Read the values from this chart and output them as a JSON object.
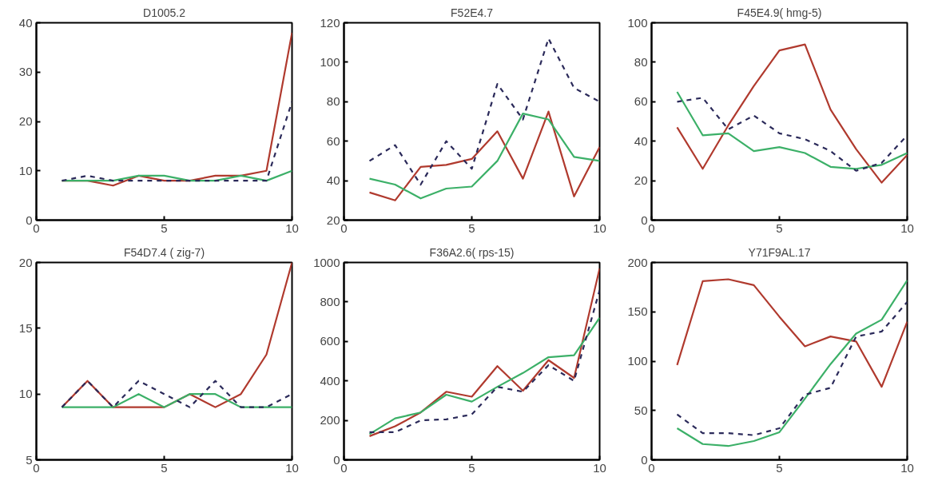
{
  "chart_data": [
    {
      "type": "line",
      "title": "D1005.2",
      "x": [
        1,
        2,
        3,
        4,
        5,
        6,
        7,
        8,
        9,
        10
      ],
      "xlim": [
        0,
        10
      ],
      "xticks": [
        0,
        5,
        10
      ],
      "ylim": [
        0,
        40
      ],
      "yticks": [
        0,
        10,
        20,
        30,
        40
      ],
      "series": [
        {
          "color": "#b03a2e",
          "line_style": "solid",
          "values": [
            8,
            8,
            7,
            9,
            8,
            8,
            9,
            9,
            10,
            38
          ]
        },
        {
          "color": "#3cb068",
          "line_style": "solid",
          "values": [
            8,
            8,
            8,
            9,
            9,
            8,
            8,
            9,
            8,
            10
          ]
        },
        {
          "color": "#2b2a5a",
          "line_style": "dashed",
          "values": [
            8,
            9,
            8,
            8,
            8,
            8,
            8,
            8,
            8,
            24
          ]
        }
      ]
    },
    {
      "type": "line",
      "title": "F52E4.7",
      "x": [
        1,
        2,
        3,
        4,
        5,
        6,
        7,
        8,
        9,
        10
      ],
      "xlim": [
        0,
        10
      ],
      "xticks": [
        0,
        5,
        10
      ],
      "ylim": [
        20,
        120
      ],
      "yticks": [
        20,
        40,
        60,
        80,
        100,
        120
      ],
      "series": [
        {
          "color": "#b03a2e",
          "line_style": "solid",
          "values": [
            34,
            30,
            47,
            48,
            51,
            65,
            41,
            75,
            32,
            57
          ]
        },
        {
          "color": "#3cb068",
          "line_style": "solid",
          "values": [
            41,
            38,
            31,
            36,
            37,
            50,
            74,
            71,
            52,
            50
          ]
        },
        {
          "color": "#2b2a5a",
          "line_style": "dashed",
          "values": [
            50,
            58,
            38,
            60,
            46,
            89,
            71,
            112,
            87,
            80
          ]
        }
      ]
    },
    {
      "type": "line",
      "title": "F45E4.9( hmg-5)",
      "x": [
        1,
        2,
        3,
        4,
        5,
        6,
        7,
        8,
        9,
        10
      ],
      "xlim": [
        0,
        10
      ],
      "xticks": [
        0,
        5,
        10
      ],
      "ylim": [
        0,
        100
      ],
      "yticks": [
        0,
        20,
        40,
        60,
        80,
        100
      ],
      "series": [
        {
          "color": "#b03a2e",
          "line_style": "solid",
          "values": [
            47,
            26,
            48,
            68,
            86,
            89,
            56,
            36,
            19,
            33
          ]
        },
        {
          "color": "#3cb068",
          "line_style": "solid",
          "values": [
            65,
            43,
            44,
            35,
            37,
            34,
            27,
            26,
            28,
            34
          ]
        },
        {
          "color": "#2b2a5a",
          "line_style": "dashed",
          "values": [
            60,
            62,
            46,
            53,
            44,
            41,
            35,
            25,
            29,
            43
          ]
        }
      ]
    },
    {
      "type": "line",
      "title": "F54D7.4 ( zig-7)",
      "x": [
        1,
        2,
        3,
        4,
        5,
        6,
        7,
        8,
        9,
        10
      ],
      "xlim": [
        0,
        10
      ],
      "xticks": [
        0,
        5,
        10
      ],
      "ylim": [
        5,
        20
      ],
      "yticks": [
        5,
        10,
        15,
        20
      ],
      "series": [
        {
          "color": "#b03a2e",
          "line_style": "solid",
          "values": [
            9,
            11,
            9,
            9,
            9,
            10,
            9,
            10,
            13,
            20
          ]
        },
        {
          "color": "#3cb068",
          "line_style": "solid",
          "values": [
            9,
            9,
            9,
            10,
            9,
            10,
            10,
            9,
            9,
            9
          ]
        },
        {
          "color": "#2b2a5a",
          "line_style": "dashed",
          "values": [
            9,
            11,
            9,
            11,
            10,
            9,
            11,
            9,
            9,
            10
          ]
        }
      ]
    },
    {
      "type": "line",
      "title": "F36A2.6( rps-15)",
      "x": [
        1,
        2,
        3,
        4,
        5,
        6,
        7,
        8,
        9,
        10
      ],
      "xlim": [
        0,
        10
      ],
      "xticks": [
        0,
        5,
        10
      ],
      "ylim": [
        0,
        1000
      ],
      "yticks": [
        0,
        200,
        400,
        600,
        800,
        1000
      ],
      "series": [
        {
          "color": "#b03a2e",
          "line_style": "solid",
          "values": [
            120,
            170,
            240,
            345,
            320,
            475,
            350,
            505,
            415,
            970
          ]
        },
        {
          "color": "#3cb068",
          "line_style": "solid",
          "values": [
            130,
            210,
            240,
            330,
            295,
            370,
            440,
            520,
            530,
            720
          ]
        },
        {
          "color": "#2b2a5a",
          "line_style": "dashed",
          "values": [
            140,
            140,
            200,
            205,
            230,
            370,
            345,
            480,
            400,
            860
          ]
        }
      ]
    },
    {
      "type": "line",
      "title": "Y71F9AL.17",
      "x": [
        1,
        2,
        3,
        4,
        5,
        6,
        7,
        8,
        9,
        10
      ],
      "xlim": [
        0,
        10
      ],
      "xticks": [
        0,
        5,
        10
      ],
      "ylim": [
        0,
        200
      ],
      "yticks": [
        0,
        50,
        100,
        150,
        200
      ],
      "series": [
        {
          "color": "#b03a2e",
          "line_style": "solid",
          "values": [
            96,
            181,
            183,
            177,
            145,
            115,
            125,
            120,
            74,
            140
          ]
        },
        {
          "color": "#3cb068",
          "line_style": "solid",
          "values": [
            32,
            16,
            14,
            19,
            28,
            62,
            97,
            128,
            142,
            182
          ]
        },
        {
          "color": "#2b2a5a",
          "line_style": "dashed",
          "values": [
            46,
            27,
            27,
            25,
            32,
            66,
            73,
            125,
            130,
            160
          ]
        }
      ]
    }
  ]
}
